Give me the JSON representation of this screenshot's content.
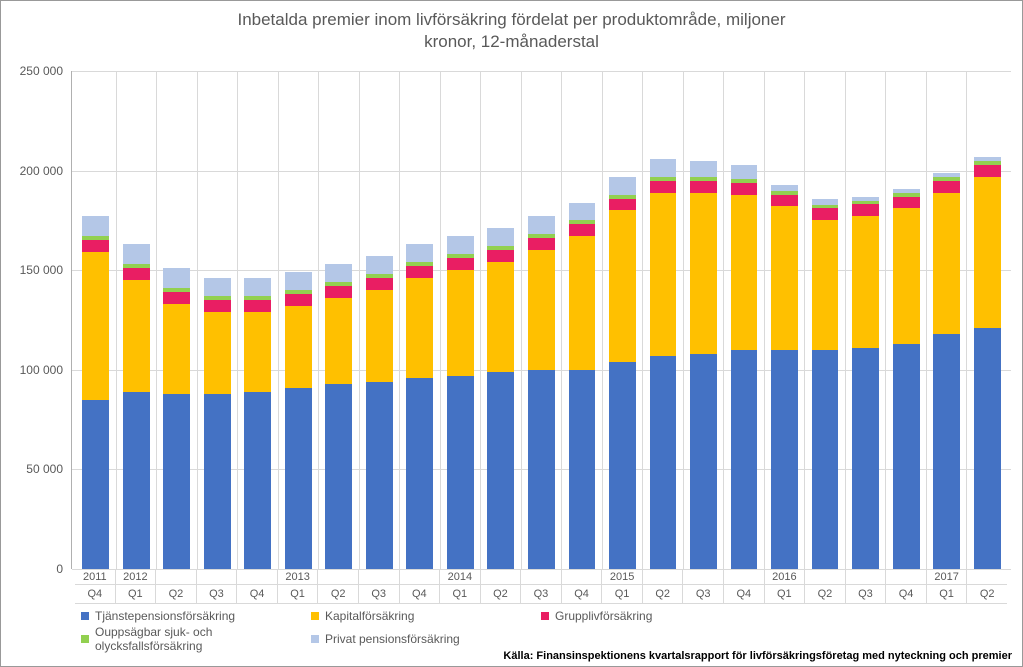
{
  "chart": {
    "type": "stacked-bar",
    "title_line1": "Inbetalda premier inom livförsäkring fördelat per produktområde, miljoner",
    "title_line2": "kronor, 12-månaderstal",
    "title_fontsize": 17,
    "title_color": "#595959",
    "background_color": "#ffffff",
    "grid_color": "#d9d9d9",
    "axis_label_color": "#595959",
    "axis_fontsize": 12,
    "ylim": [
      0,
      250000
    ],
    "ytick_step": 50000,
    "yticks": [
      "0",
      "50 000",
      "100 000",
      "150 000",
      "200 000",
      "250 000"
    ],
    "series": [
      {
        "key": "s1",
        "label": "Tjänstepensionsförsäkring",
        "color": "#4472c4"
      },
      {
        "key": "s2",
        "label": "Kapitalförsäkring",
        "color": "#ffc000"
      },
      {
        "key": "s3",
        "label": "Grupplivförsäkring",
        "color": "#e91e63"
      },
      {
        "key": "s4",
        "label": "Ouppsägbar sjuk- och olycksfallsförsäkring",
        "color": "#92d050"
      },
      {
        "key": "s5",
        "label": "Privat pensionsförsäkring",
        "color": "#b4c7e7"
      }
    ],
    "legend_rows": [
      [
        "s1",
        "s2",
        "s3"
      ],
      [
        "s4",
        "s5"
      ]
    ],
    "categories": [
      {
        "year": "2011",
        "quarter": "Q4",
        "s1": 85000,
        "s2": 74000,
        "s3": 6000,
        "s4": 2000,
        "s5": 10000
      },
      {
        "year": "2012",
        "quarter": "Q1",
        "s1": 89000,
        "s2": 56000,
        "s3": 6000,
        "s4": 2000,
        "s5": 10000
      },
      {
        "year": "",
        "quarter": "Q2",
        "s1": 88000,
        "s2": 45000,
        "s3": 6000,
        "s4": 2000,
        "s5": 10000
      },
      {
        "year": "",
        "quarter": "Q3",
        "s1": 88000,
        "s2": 41000,
        "s3": 6000,
        "s4": 2000,
        "s5": 9000
      },
      {
        "year": "",
        "quarter": "Q4",
        "s1": 89000,
        "s2": 40000,
        "s3": 6000,
        "s4": 2000,
        "s5": 9000
      },
      {
        "year": "2013",
        "quarter": "Q1",
        "s1": 91000,
        "s2": 41000,
        "s3": 6000,
        "s4": 2000,
        "s5": 9000
      },
      {
        "year": "",
        "quarter": "Q2",
        "s1": 93000,
        "s2": 43000,
        "s3": 6000,
        "s4": 2000,
        "s5": 9000
      },
      {
        "year": "",
        "quarter": "Q3",
        "s1": 94000,
        "s2": 46000,
        "s3": 6000,
        "s4": 2000,
        "s5": 9000
      },
      {
        "year": "",
        "quarter": "Q4",
        "s1": 96000,
        "s2": 50000,
        "s3": 6000,
        "s4": 2000,
        "s5": 9000
      },
      {
        "year": "2014",
        "quarter": "Q1",
        "s1": 97000,
        "s2": 53000,
        "s3": 6000,
        "s4": 2000,
        "s5": 9000
      },
      {
        "year": "",
        "quarter": "Q2",
        "s1": 99000,
        "s2": 55000,
        "s3": 6000,
        "s4": 2000,
        "s5": 9000
      },
      {
        "year": "",
        "quarter": "Q3",
        "s1": 100000,
        "s2": 60000,
        "s3": 6000,
        "s4": 2000,
        "s5": 9000
      },
      {
        "year": "",
        "quarter": "Q4",
        "s1": 100000,
        "s2": 67000,
        "s3": 6000,
        "s4": 2000,
        "s5": 9000
      },
      {
        "year": "2015",
        "quarter": "Q1",
        "s1": 104000,
        "s2": 76000,
        "s3": 6000,
        "s4": 2000,
        "s5": 9000
      },
      {
        "year": "",
        "quarter": "Q2",
        "s1": 107000,
        "s2": 82000,
        "s3": 6000,
        "s4": 2000,
        "s5": 9000
      },
      {
        "year": "",
        "quarter": "Q3",
        "s1": 108000,
        "s2": 81000,
        "s3": 6000,
        "s4": 2000,
        "s5": 8000
      },
      {
        "year": "",
        "quarter": "Q4",
        "s1": 110000,
        "s2": 78000,
        "s3": 6000,
        "s4": 2000,
        "s5": 7000
      },
      {
        "year": "2016",
        "quarter": "Q1",
        "s1": 110000,
        "s2": 72000,
        "s3": 6000,
        "s4": 2000,
        "s5": 3000
      },
      {
        "year": "",
        "quarter": "Q2",
        "s1": 110000,
        "s2": 65000,
        "s3": 6000,
        "s4": 2000,
        "s5": 3000
      },
      {
        "year": "",
        "quarter": "Q3",
        "s1": 111000,
        "s2": 66000,
        "s3": 6000,
        "s4": 2000,
        "s5": 2000
      },
      {
        "year": "",
        "quarter": "Q4",
        "s1": 113000,
        "s2": 68000,
        "s3": 6000,
        "s4": 2000,
        "s5": 2000
      },
      {
        "year": "2017",
        "quarter": "Q1",
        "s1": 118000,
        "s2": 71000,
        "s3": 6000,
        "s4": 2000,
        "s5": 2000
      },
      {
        "year": "",
        "quarter": "Q2",
        "s1": 121000,
        "s2": 76000,
        "s3": 6000,
        "s4": 2000,
        "s5": 2000
      }
    ],
    "source_label": "Källa: Finansinspektionens kvartalsrapport för livförsäkringsföretag med nyteckning och premier"
  }
}
